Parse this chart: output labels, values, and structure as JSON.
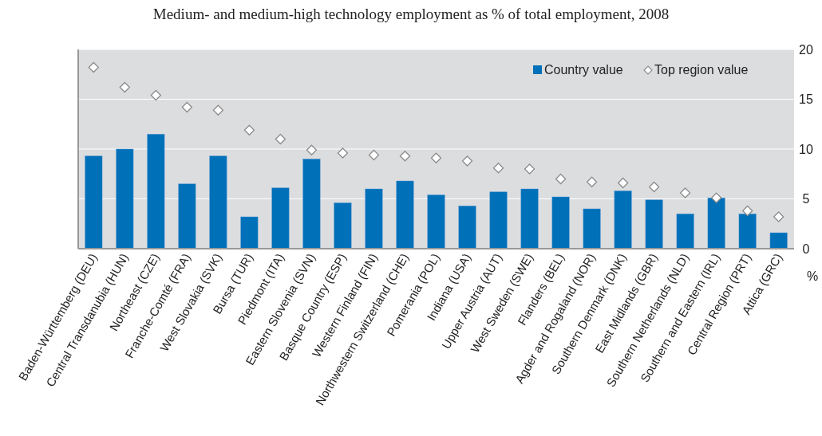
{
  "chart_data": {
    "type": "bar",
    "title": "Medium- and medium-high technology employment as % of total employment, 2008",
    "ylabel": "%",
    "categories": [
      "Baden-Württemberg (DEU)",
      "Central Transdanubia (HUN)",
      "Northeast (CZE)",
      "Franche-Comté (FRA)",
      "West  Slovakia (SVK)",
      "Bursa (TUR)",
      "Piedmont (ITA)",
      "Eastern Slovenia (SVN)",
      "Basque Country (ESP)",
      "Western Finland (FIN)",
      "Northwestern Switzerland (CHE)",
      "Pomerania (POL)",
      "Indiana (USA)",
      "Upper Austria (AUT)",
      "West  Sweden (SWE)",
      "Flanders (BEL)",
      "Agder and Rogaland (NOR)",
      "Southern Denmark (DNK)",
      "East Midlands (GBR)",
      "Southern Netherlands (NLD)",
      "Southern and Eastern (IRL)",
      "Central Region (PRT)",
      "Attica (GRC)"
    ],
    "series": [
      {
        "name": "Country value",
        "color": "#0070b8",
        "values": [
          9.3,
          10.0,
          11.5,
          6.5,
          9.3,
          3.2,
          6.1,
          9.0,
          4.6,
          6.0,
          6.8,
          5.4,
          4.3,
          5.7,
          6.0,
          5.2,
          4.0,
          5.8,
          4.9,
          3.5,
          5.1,
          3.5,
          1.6
        ]
      },
      {
        "name": "Top region value",
        "type": "scatter",
        "marker": "diamond",
        "color": "#ffffff",
        "values": [
          18.2,
          16.2,
          15.4,
          14.2,
          13.9,
          11.9,
          11.0,
          9.9,
          9.6,
          9.4,
          9.3,
          9.1,
          8.8,
          8.1,
          8.0,
          7.0,
          6.7,
          6.6,
          6.2,
          5.6,
          5.1,
          3.8,
          3.2
        ]
      }
    ],
    "ylim": [
      0,
      20
    ],
    "yticks": [
      0,
      5,
      10,
      15,
      20
    ],
    "grid": "y",
    "legend": "top right"
  }
}
